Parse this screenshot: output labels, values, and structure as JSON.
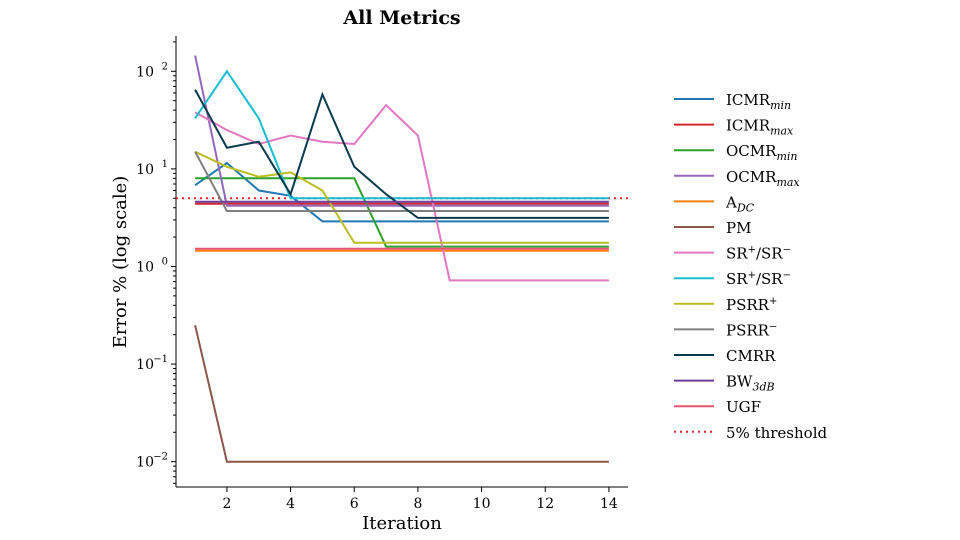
{
  "chart_data": {
    "type": "line",
    "title": "All Metrics",
    "xlabel": "Iteration",
    "ylabel": "Error % (log scale)",
    "yscale": "log",
    "xlim": [
      0.4,
      14.6
    ],
    "ylim": [
      0.0055,
      230
    ],
    "xticks": [
      2,
      4,
      6,
      8,
      10,
      12,
      14
    ],
    "yticks": [
      {
        "value": 0.01,
        "base": "10",
        "exp": "−2"
      },
      {
        "value": 0.1,
        "base": "10",
        "exp": "−1"
      },
      {
        "value": 1,
        "base": "10",
        "exp": "0"
      },
      {
        "value": 10,
        "base": "10",
        "exp": "1"
      },
      {
        "value": 100,
        "base": "10",
        "exp": "2"
      }
    ],
    "grid": false,
    "legend_position": "right",
    "x": [
      1,
      2,
      3,
      4,
      5,
      6,
      7,
      8,
      9,
      10,
      11,
      12,
      13,
      14
    ],
    "series": [
      {
        "name": "ICMR",
        "sub": "min",
        "color": "#1f77b4",
        "values": [
          6.8,
          11.5,
          6.0,
          5.3,
          2.9,
          2.9,
          2.9,
          2.9,
          2.9,
          2.9,
          2.9,
          2.9,
          2.9,
          2.9
        ]
      },
      {
        "name": "ICMR",
        "sub": "max",
        "color": "#d62728",
        "values": [
          4.4,
          4.4,
          4.4,
          4.4,
          4.4,
          4.4,
          4.4,
          4.4,
          4.4,
          4.4,
          4.4,
          4.4,
          4.4,
          4.4
        ]
      },
      {
        "name": "OCMR",
        "sub": "min",
        "color": "#2ca02c",
        "values": [
          8.0,
          8.0,
          8.0,
          8.0,
          8.0,
          8.0,
          1.6,
          1.6,
          1.6,
          1.6,
          1.6,
          1.6,
          1.6,
          1.6
        ]
      },
      {
        "name": "OCMR",
        "sub": "max",
        "color": "#9467bd",
        "values": [
          145,
          4.2,
          4.2,
          4.2,
          4.2,
          4.2,
          4.2,
          4.2,
          4.2,
          4.2,
          4.2,
          4.2,
          4.2,
          4.2
        ]
      },
      {
        "name": "A",
        "sub": "DC",
        "color": "#ff7f0e",
        "values": [
          1.45,
          1.45,
          1.45,
          1.45,
          1.45,
          1.45,
          1.45,
          1.45,
          1.45,
          1.45,
          1.45,
          1.45,
          1.45,
          1.45
        ]
      },
      {
        "name": "PM",
        "color": "#8c564b",
        "values": [
          0.25,
          0.01,
          0.01,
          0.01,
          0.01,
          0.01,
          0.01,
          0.01,
          0.01,
          0.01,
          0.01,
          0.01,
          0.01,
          0.01
        ]
      },
      {
        "name": "SR",
        "sup1": "+",
        "mid": "/SR",
        "sup2": "−",
        "color": "#e377c2",
        "values": [
          38,
          25,
          18,
          22,
          19,
          18,
          45,
          22,
          0.72,
          0.72,
          0.72,
          0.72,
          0.72,
          0.72
        ]
      },
      {
        "name": "SR",
        "sup1": "+",
        "mid": "/SR",
        "sup2": "−",
        "color": "#17becf",
        "values": [
          33,
          100,
          33,
          5.0,
          5.0,
          5.0,
          5.0,
          5.0,
          5.0,
          5.0,
          5.0,
          5.0,
          5.0,
          5.0
        ]
      },
      {
        "name": "PSRR",
        "sup1": "+",
        "color": "#bcbd22",
        "values": [
          15,
          10.5,
          8.3,
          9.2,
          6.0,
          1.75,
          1.75,
          1.75,
          1.75,
          1.75,
          1.75,
          1.75,
          1.75,
          1.75
        ]
      },
      {
        "name": "PSRR",
        "sup1": "−",
        "color": "#7f7f7f",
        "values": [
          15,
          3.7,
          3.7,
          3.7,
          3.7,
          3.7,
          3.7,
          3.7,
          3.7,
          3.7,
          3.7,
          3.7,
          3.7,
          3.7
        ]
      },
      {
        "name": "CMRR",
        "color": "#073b4c",
        "values": [
          65,
          16.5,
          19,
          5.5,
          58,
          10.5,
          5.5,
          3.15,
          3.15,
          3.15,
          3.15,
          3.15,
          3.15,
          3.15
        ]
      },
      {
        "name": "BW",
        "sub": "3dB",
        "color": "#6a3d9a",
        "values": [
          4.6,
          4.6,
          4.6,
          4.6,
          4.6,
          4.6,
          4.6,
          4.6,
          4.6,
          4.6,
          4.6,
          4.6,
          4.6,
          4.6
        ]
      },
      {
        "name": "UGF",
        "color": "#e6556f",
        "values": [
          1.52,
          1.52,
          1.52,
          1.52,
          1.52,
          1.52,
          1.52,
          1.52,
          1.52,
          1.52,
          1.52,
          1.52,
          1.52,
          1.52
        ]
      }
    ],
    "threshold": {
      "name": "5% threshold",
      "value": 5.0,
      "color": "#d62728",
      "style": "dotted"
    }
  }
}
